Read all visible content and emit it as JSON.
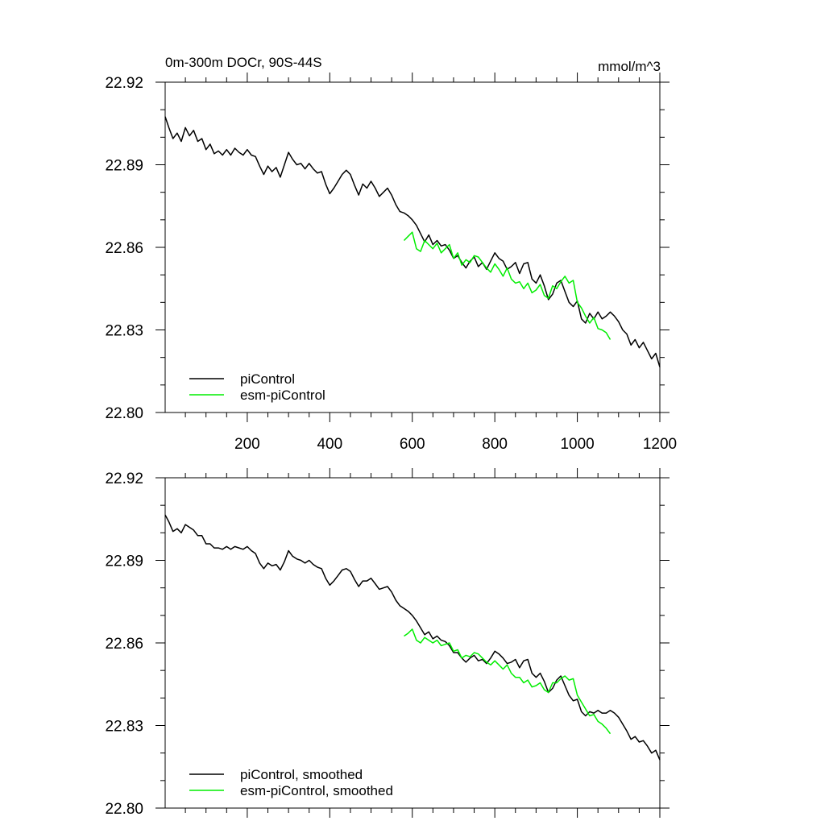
{
  "chart_data": [
    {
      "type": "line",
      "title": "0m-300m DOCr, 90S-44S",
      "units": "mmol/m^3",
      "xlim": [
        1,
        1200
      ],
      "ylim": [
        22.8,
        22.92
      ],
      "xticks": [
        200,
        400,
        600,
        800,
        1000,
        1200
      ],
      "xtick_labels": [
        "200",
        "400",
        "600",
        "800",
        "1000",
        "1200"
      ],
      "yticks": [
        22.8,
        22.83,
        22.86,
        22.89,
        22.92
      ],
      "ytick_labels": [
        "22.80",
        "22.83",
        "22.86",
        "22.89",
        "22.92"
      ],
      "legend_position": "bottom-left",
      "series": [
        {
          "name": "piControl",
          "color": "#000000",
          "x": [
            1,
            10,
            20,
            30,
            40,
            50,
            60,
            70,
            80,
            90,
            100,
            110,
            120,
            130,
            140,
            150,
            160,
            170,
            180,
            190,
            200,
            210,
            220,
            230,
            240,
            250,
            260,
            270,
            280,
            290,
            300,
            310,
            320,
            330,
            340,
            350,
            360,
            370,
            380,
            390,
            400,
            410,
            420,
            430,
            440,
            450,
            460,
            470,
            480,
            490,
            500,
            510,
            520,
            530,
            540,
            550,
            560,
            570,
            580,
            590,
            600,
            610,
            620,
            630,
            640,
            650,
            660,
            670,
            680,
            690,
            700,
            710,
            720,
            730,
            740,
            750,
            760,
            770,
            780,
            790,
            800,
            810,
            820,
            830,
            840,
            850,
            860,
            870,
            880,
            890,
            900,
            910,
            920,
            930,
            940,
            950,
            960,
            970,
            980,
            990,
            1000,
            1010,
            1020,
            1030,
            1040,
            1050,
            1060,
            1070,
            1080,
            1090,
            1100,
            1110,
            1120,
            1130,
            1140,
            1150,
            1160,
            1170,
            1180,
            1190,
            1200
          ],
          "values": [
            22.9075,
            22.9035,
            22.8995,
            22.9015,
            22.8985,
            22.9035,
            22.9005,
            22.9025,
            22.8985,
            22.8995,
            22.8955,
            22.8975,
            22.894,
            22.895,
            22.8935,
            22.8955,
            22.8935,
            22.896,
            22.8945,
            22.8935,
            22.8955,
            22.8935,
            22.893,
            22.8895,
            22.8865,
            22.8895,
            22.8875,
            22.889,
            22.8855,
            22.89,
            22.8945,
            22.892,
            22.89,
            22.8905,
            22.8885,
            22.8905,
            22.8885,
            22.887,
            22.8875,
            22.883,
            22.8795,
            22.8815,
            22.884,
            22.8865,
            22.888,
            22.8865,
            22.8825,
            22.879,
            22.883,
            22.8815,
            22.884,
            22.8815,
            22.8785,
            22.88,
            22.8815,
            22.879,
            22.8755,
            22.873,
            22.8725,
            22.8715,
            22.87,
            22.868,
            22.865,
            22.862,
            22.8645,
            22.861,
            22.8625,
            22.8605,
            22.861,
            22.859,
            22.856,
            22.857,
            22.8545,
            22.8525,
            22.855,
            22.8565,
            22.853,
            22.8545,
            22.852,
            22.855,
            22.858,
            22.856,
            22.855,
            22.852,
            22.853,
            22.8545,
            22.8505,
            22.854,
            22.8545,
            22.8485,
            22.847,
            22.85,
            22.846,
            22.841,
            22.843,
            22.847,
            22.848,
            22.844,
            22.84,
            22.8385,
            22.8405,
            22.834,
            22.8325,
            22.836,
            22.834,
            22.8365,
            22.834,
            22.835,
            22.8365,
            22.835,
            22.833,
            22.83,
            22.8285,
            22.8245,
            22.8265,
            22.8235,
            22.8255,
            22.8225,
            22.8195,
            22.8215,
            22.8165
          ]
        },
        {
          "name": "esm-piControl",
          "color": "#00ee00",
          "x": [
            580,
            590,
            600,
            610,
            620,
            630,
            640,
            650,
            660,
            670,
            680,
            690,
            700,
            710,
            720,
            730,
            740,
            750,
            760,
            770,
            780,
            790,
            800,
            810,
            820,
            830,
            840,
            850,
            860,
            870,
            880,
            890,
            900,
            910,
            920,
            930,
            940,
            950,
            960,
            970,
            980,
            990,
            1000,
            1010,
            1020,
            1030,
            1040,
            1050,
            1060,
            1070,
            1080
          ],
          "values": [
            22.8625,
            22.864,
            22.8655,
            22.8595,
            22.8585,
            22.8625,
            22.861,
            22.8595,
            22.8615,
            22.858,
            22.8595,
            22.861,
            22.856,
            22.858,
            22.8535,
            22.8555,
            22.8545,
            22.857,
            22.8565,
            22.8545,
            22.8525,
            22.851,
            22.854,
            22.852,
            22.8495,
            22.8525,
            22.8485,
            22.847,
            22.8475,
            22.845,
            22.847,
            22.8435,
            22.8445,
            22.8465,
            22.8425,
            22.8415,
            22.846,
            22.845,
            22.8475,
            22.8495,
            22.847,
            22.848,
            22.84,
            22.838,
            22.835,
            22.8325,
            22.8345,
            22.8305,
            22.83,
            22.829,
            22.8265
          ]
        }
      ]
    },
    {
      "type": "line",
      "title": "",
      "units": "",
      "xlim": [
        1,
        1200
      ],
      "ylim": [
        22.8,
        22.92
      ],
      "xticks": [
        200,
        400,
        600,
        800,
        1000,
        1200
      ],
      "xtick_labels": [],
      "yticks": [
        22.8,
        22.83,
        22.86,
        22.89,
        22.92
      ],
      "ytick_labels": [
        "22.80",
        "22.83",
        "22.86",
        "22.89",
        "22.92"
      ],
      "legend_position": "bottom-left",
      "series": [
        {
          "name": "piControl, smoothed",
          "color": "#000000",
          "x": [
            1,
            10,
            20,
            30,
            40,
            50,
            60,
            70,
            80,
            90,
            100,
            110,
            120,
            130,
            140,
            150,
            160,
            170,
            180,
            190,
            200,
            210,
            220,
            230,
            240,
            250,
            260,
            270,
            280,
            290,
            300,
            310,
            320,
            330,
            340,
            350,
            360,
            370,
            380,
            390,
            400,
            410,
            420,
            430,
            440,
            450,
            460,
            470,
            480,
            490,
            500,
            510,
            520,
            530,
            540,
            550,
            560,
            570,
            580,
            590,
            600,
            610,
            620,
            630,
            640,
            650,
            660,
            670,
            680,
            690,
            700,
            710,
            720,
            730,
            740,
            750,
            760,
            770,
            780,
            790,
            800,
            810,
            820,
            830,
            840,
            850,
            860,
            870,
            880,
            890,
            900,
            910,
            920,
            930,
            940,
            950,
            960,
            970,
            980,
            990,
            1000,
            1010,
            1020,
            1030,
            1040,
            1050,
            1060,
            1070,
            1080,
            1090,
            1100,
            1110,
            1120,
            1130,
            1140,
            1150,
            1160,
            1170,
            1180,
            1190,
            1200
          ],
          "values": [
            22.9065,
            22.904,
            22.9005,
            22.9015,
            22.9,
            22.903,
            22.902,
            22.901,
            22.899,
            22.899,
            22.896,
            22.896,
            22.8945,
            22.8945,
            22.894,
            22.895,
            22.894,
            22.895,
            22.8945,
            22.894,
            22.895,
            22.8935,
            22.8925,
            22.889,
            22.887,
            22.889,
            22.888,
            22.8885,
            22.8865,
            22.8895,
            22.8935,
            22.8915,
            22.8905,
            22.89,
            22.889,
            22.89,
            22.8885,
            22.8875,
            22.887,
            22.8835,
            22.881,
            22.8825,
            22.8845,
            22.8865,
            22.887,
            22.886,
            22.883,
            22.8805,
            22.8825,
            22.8825,
            22.8835,
            22.8815,
            22.8795,
            22.88,
            22.8805,
            22.8785,
            22.8755,
            22.8735,
            22.8725,
            22.8715,
            22.87,
            22.868,
            22.8655,
            22.863,
            22.864,
            22.8615,
            22.8625,
            22.861,
            22.8605,
            22.859,
            22.8565,
            22.8565,
            22.8545,
            22.853,
            22.8545,
            22.8555,
            22.8535,
            22.854,
            22.8525,
            22.8545,
            22.857,
            22.856,
            22.8545,
            22.8525,
            22.853,
            22.854,
            22.851,
            22.8535,
            22.854,
            22.849,
            22.8475,
            22.849,
            22.846,
            22.842,
            22.8435,
            22.8465,
            22.848,
            22.8445,
            22.841,
            22.839,
            22.8395,
            22.835,
            22.8335,
            22.835,
            22.8345,
            22.8355,
            22.8345,
            22.8345,
            22.8355,
            22.8345,
            22.833,
            22.8305,
            22.828,
            22.825,
            22.826,
            22.824,
            22.8245,
            22.8225,
            22.82,
            22.821,
            22.8175
          ]
        },
        {
          "name": "esm-piControl, smoothed",
          "color": "#00ee00",
          "x": [
            580,
            590,
            600,
            610,
            620,
            630,
            640,
            650,
            660,
            670,
            680,
            690,
            700,
            710,
            720,
            730,
            740,
            750,
            760,
            770,
            780,
            790,
            800,
            810,
            820,
            830,
            840,
            850,
            860,
            870,
            880,
            890,
            900,
            910,
            920,
            930,
            940,
            950,
            960,
            970,
            980,
            990,
            1000,
            1010,
            1020,
            1030,
            1040,
            1050,
            1060,
            1070,
            1080
          ],
          "values": [
            22.8625,
            22.8635,
            22.865,
            22.861,
            22.86,
            22.862,
            22.861,
            22.86,
            22.861,
            22.859,
            22.8595,
            22.86,
            22.857,
            22.8575,
            22.8545,
            22.8555,
            22.855,
            22.8565,
            22.856,
            22.8545,
            22.853,
            22.852,
            22.8535,
            22.852,
            22.8505,
            22.852,
            22.849,
            22.8475,
            22.8475,
            22.8455,
            22.8465,
            22.844,
            22.8445,
            22.8455,
            22.843,
            22.842,
            22.8455,
            22.8455,
            22.847,
            22.848,
            22.8465,
            22.847,
            22.841,
            22.8385,
            22.836,
            22.8335,
            22.834,
            22.8315,
            22.8305,
            22.829,
            22.827
          ]
        }
      ]
    }
  ]
}
